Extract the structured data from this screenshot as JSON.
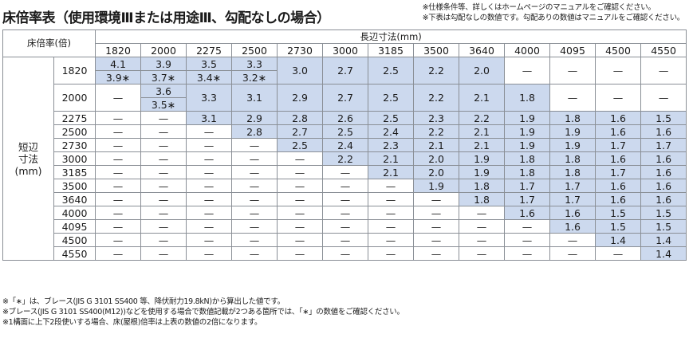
{
  "title": "床倍率表（使用環境Ⅲまたは用途Ⅲ、勾配なしの場合）",
  "notes": [
    "※仕様条件等、詳しくはホームページのマニュアルをご確認ください。",
    "※下表は勾配なしの数値です。勾配ありの数値はマニュアルをご確認ください。"
  ],
  "table": {
    "corner_label": "床倍率(倍)",
    "long_side_label": "長辺寸法(mm)",
    "short_side_label": [
      "短辺",
      "寸法",
      "(mm)"
    ],
    "columns": [
      "1820",
      "2000",
      "2275",
      "2500",
      "2730",
      "3000",
      "3185",
      "3500",
      "3640",
      "4000",
      "4095",
      "4500",
      "4550"
    ],
    "rows": [
      {
        "label": "1820",
        "values": [
          "4.1",
          "3.9",
          "3.5",
          "3.3",
          "3.0",
          "2.7",
          "2.5",
          "2.2",
          "2.0",
          "—",
          "—",
          "—",
          "—"
        ],
        "sub": [
          "3.9∗",
          "3.7∗",
          "3.4∗",
          "3.2∗",
          null,
          null,
          null,
          null,
          null,
          null,
          null,
          null,
          null
        ]
      },
      {
        "label": "2000",
        "values": [
          "—",
          "3.6",
          "3.3",
          "3.1",
          "2.9",
          "2.7",
          "2.5",
          "2.2",
          "2.1",
          "1.8",
          "—",
          "—",
          "—"
        ],
        "sub": [
          null,
          "3.5∗",
          null,
          null,
          null,
          null,
          null,
          null,
          null,
          null,
          null,
          null,
          null
        ]
      },
      {
        "label": "2275",
        "values": [
          "—",
          "—",
          "3.1",
          "2.9",
          "2.8",
          "2.6",
          "2.5",
          "2.3",
          "2.2",
          "1.9",
          "1.8",
          "1.6",
          "1.5"
        ]
      },
      {
        "label": "2500",
        "values": [
          "—",
          "—",
          "—",
          "2.8",
          "2.7",
          "2.5",
          "2.4",
          "2.2",
          "2.1",
          "1.9",
          "1.9",
          "1.6",
          "1.6"
        ]
      },
      {
        "label": "2730",
        "values": [
          "—",
          "—",
          "—",
          "—",
          "2.5",
          "2.4",
          "2.3",
          "2.1",
          "2.1",
          "1.9",
          "1.9",
          "1.7",
          "1.7"
        ]
      },
      {
        "label": "3000",
        "values": [
          "—",
          "—",
          "—",
          "—",
          "—",
          "2.2",
          "2.1",
          "2.0",
          "1.9",
          "1.8",
          "1.8",
          "1.6",
          "1.6"
        ]
      },
      {
        "label": "3185",
        "values": [
          "—",
          "—",
          "—",
          "—",
          "—",
          "—",
          "2.1",
          "2.0",
          "1.9",
          "1.8",
          "1.8",
          "1.7",
          "1.6"
        ]
      },
      {
        "label": "3500",
        "values": [
          "—",
          "—",
          "—",
          "—",
          "—",
          "—",
          "—",
          "1.9",
          "1.8",
          "1.7",
          "1.7",
          "1.6",
          "1.6"
        ]
      },
      {
        "label": "3640",
        "values": [
          "—",
          "—",
          "—",
          "—",
          "—",
          "—",
          "—",
          "—",
          "1.8",
          "1.7",
          "1.7",
          "1.6",
          "1.6"
        ]
      },
      {
        "label": "4000",
        "values": [
          "—",
          "—",
          "—",
          "—",
          "—",
          "—",
          "—",
          "—",
          "—",
          "1.6",
          "1.6",
          "1.5",
          "1.5"
        ]
      },
      {
        "label": "4095",
        "values": [
          "—",
          "—",
          "—",
          "—",
          "—",
          "—",
          "—",
          "—",
          "—",
          "—",
          "1.6",
          "1.5",
          "1.5"
        ]
      },
      {
        "label": "4500",
        "values": [
          "—",
          "—",
          "—",
          "—",
          "—",
          "—",
          "—",
          "—",
          "—",
          "—",
          "—",
          "1.4",
          "1.4"
        ]
      },
      {
        "label": "4550",
        "values": [
          "—",
          "—",
          "—",
          "—",
          "—",
          "—",
          "—",
          "—",
          "—",
          "—",
          "—",
          "—",
          "1.4"
        ]
      }
    ]
  },
  "footnotes": [
    "※「∗」は、ブレース(JIS G 3101 SS400 等、降伏耐力19.8kN)から算出した値です。",
    "※ブレース(JIS G 3101 SS400(M12))などを使用する場合で数値記載が2つある箇所では、「∗」の数値をご確認ください。",
    "※1構面に上下2段使いする場合、床(屋根)倍率は上表の数値の2倍になります。"
  ],
  "colors": {
    "filled_cell": "#ccd9ee",
    "border": "#8a8f96",
    "text": "#1a1a1a"
  }
}
